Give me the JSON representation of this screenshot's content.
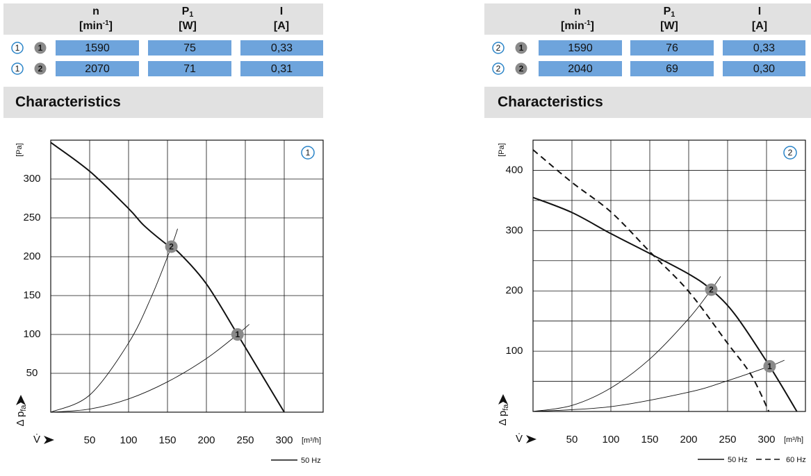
{
  "table_columns": [
    {
      "symbol": "n",
      "unit": "[min",
      "unit_sup": "-1",
      "unit_close": "]"
    },
    {
      "symbol": "P",
      "symbol_sub": "1",
      "unit": "[W]"
    },
    {
      "symbol": "I",
      "unit": "[A]"
    }
  ],
  "section_title": "Characteristics",
  "tables": [
    {
      "rows": [
        {
          "curve": "1",
          "point": "1",
          "cells": [
            "1590",
            "75",
            "0,33"
          ]
        },
        {
          "curve": "1",
          "point": "2",
          "cells": [
            "2070",
            "71",
            "0,31"
          ]
        }
      ]
    },
    {
      "rows": [
        {
          "curve": "2",
          "point": "1",
          "cells": [
            "1590",
            "76",
            "0,33"
          ]
        },
        {
          "curve": "2",
          "point": "2",
          "cells": [
            "2040",
            "69",
            "0,30"
          ]
        }
      ]
    }
  ],
  "chart_data": [
    {
      "type": "line",
      "id_label": "1",
      "xlim": [
        0,
        350
      ],
      "ylim": [
        0,
        350
      ],
      "xticks": [
        50,
        100,
        150,
        200,
        250,
        300
      ],
      "yticks": [
        50,
        100,
        150,
        200,
        250,
        300
      ],
      "x_label": "V̇",
      "x_unit": "[m³/h]",
      "y_label": "Δ p",
      "y_label_sub": "fa",
      "y_unit": "[Pa]",
      "grid": true,
      "series": [
        {
          "name": "50 Hz",
          "color": "#111111",
          "dashed": false,
          "x": [
            0,
            50,
            100,
            120,
            150,
            165,
            200,
            240,
            270,
            300
          ],
          "values": [
            347,
            310,
            262,
            240,
            215,
            205,
            165,
            100,
            50,
            0
          ]
        }
      ],
      "system_curves": [
        {
          "x": [
            0,
            50,
            100,
            150,
            200,
            240,
            255
          ],
          "values": [
            0,
            4,
            17,
            39,
            69,
            100,
            113
          ]
        },
        {
          "x": [
            0,
            50,
            100,
            130,
            155,
            163
          ],
          "values": [
            0,
            22,
            89,
            150,
            213,
            236
          ]
        }
      ],
      "points": [
        {
          "label": "1",
          "x": 240,
          "y": 100
        },
        {
          "label": "2",
          "x": 155,
          "y": 213
        }
      ]
    },
    {
      "type": "line",
      "id_label": "2",
      "xlim": [
        0,
        350
      ],
      "ylim": [
        0,
        450
      ],
      "xticks": [
        50,
        100,
        150,
        200,
        250,
        300
      ],
      "yticks": [
        100,
        200,
        300,
        400
      ],
      "minor_yticks": [
        50,
        150,
        250,
        350
      ],
      "x_label": "V̇",
      "x_unit": "[m³/h]",
      "y_label": "Δ p",
      "y_label_sub": "fa",
      "y_unit": "[Pa]",
      "grid": true,
      "series": [
        {
          "name": "50 Hz",
          "color": "#111111",
          "dashed": false,
          "x": [
            0,
            50,
            100,
            150,
            200,
            229,
            260,
            304,
            339
          ],
          "values": [
            355,
            330,
            295,
            262,
            228,
            202,
            160,
            75,
            0
          ]
        },
        {
          "name": "60 Hz",
          "color": "#111111",
          "dashed": true,
          "x": [
            0,
            50,
            100,
            150,
            200,
            250,
            280,
            303
          ],
          "values": [
            434,
            380,
            331,
            265,
            199,
            113,
            61,
            0
          ]
        }
      ],
      "system_curves": [
        {
          "x": [
            0,
            100,
            200,
            250,
            304,
            323
          ],
          "values": [
            0,
            8,
            32,
            51,
            75,
            85
          ]
        },
        {
          "x": [
            0,
            50,
            100,
            150,
            200,
            229,
            241
          ],
          "values": [
            0,
            10,
            39,
            87,
            154,
            202,
            224
          ]
        }
      ],
      "points": [
        {
          "label": "1",
          "x": 304,
          "y": 75
        },
        {
          "label": "2",
          "x": 229,
          "y": 202
        }
      ]
    }
  ]
}
